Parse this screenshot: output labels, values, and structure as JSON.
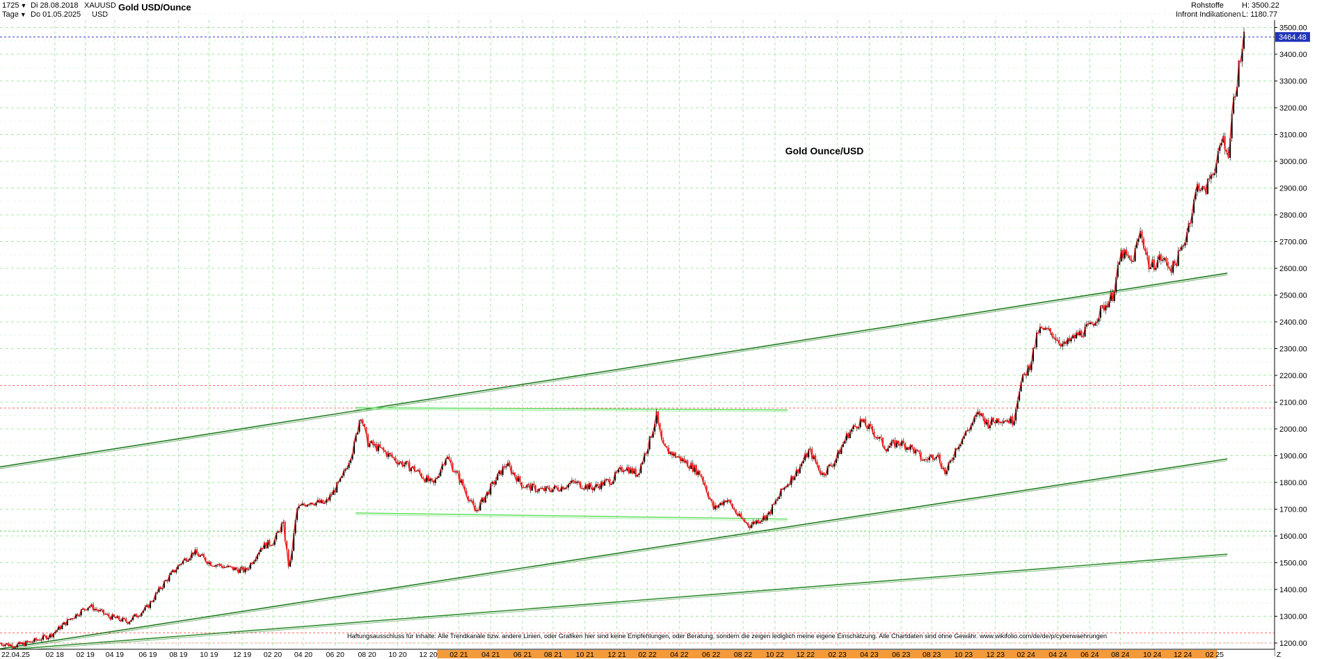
{
  "header": {
    "count": "1725",
    "period": "Tage",
    "start_date": "Di 28.08.2018",
    "end_date": "Do 01.05.2025",
    "symbol": "XAUUSD",
    "currency": "USD",
    "title": "Gold USD/Ounce",
    "category": "Rohstoffe",
    "source": "Infront Indikationen",
    "high": "H: 3500.22",
    "low": "L: 1180.77"
  },
  "chart_data": {
    "type": "candlestick",
    "title": "Gold USD/Ounce",
    "annotation": "Gold Ounce/USD",
    "disclaimer": "Haftungsausschluss für Inhalte: Alle Trendkanäle bzw. andere Linien, oder Grafiken hier sind keine Empfehlungen, oder Beratung, sondern die zeigen lediglich meine eigene Einschätzung. Alle Chartdaten sind ohne Gewähr. www.wikifolio.com/de/de/p/cyberwaehrungen",
    "ylim": [
      1180,
      3530
    ],
    "grid": true,
    "y_ticks": [
      1200,
      1300,
      1400,
      1500,
      1600,
      1700,
      1800,
      1900,
      2000,
      2100,
      2200,
      2300,
      2400,
      2500,
      2600,
      2700,
      2800,
      2900,
      3000,
      3100,
      3200,
      3300,
      3400,
      3500
    ],
    "y_tick_labels": [
      "1200.00",
      "1300.00",
      "1400.00",
      "1500.00",
      "1600.00",
      "1700.00",
      "1800.00",
      "1900.00",
      "2000.00",
      "2100.00",
      "2200.00",
      "2300.00",
      "2400.00",
      "2500.00",
      "2600.00",
      "2700.00",
      "2800.00",
      "2900.00",
      "3000.00",
      "3100.00",
      "3200.00",
      "3300.00",
      "3400.00",
      "3500.00"
    ],
    "x_tick_labels": [
      "22.04.25",
      "02 18",
      "02 19",
      "04 19",
      "06 19",
      "08 19",
      "10 19",
      "12 19",
      "02 20",
      "04 20",
      "06 20",
      "08 20",
      "10 20",
      "12 20",
      "02 21",
      "04 21",
      "06 21",
      "08 21",
      "10 21",
      "12 21",
      "02 22",
      "04 22",
      "06 22",
      "08 22",
      "10 22",
      "12 22",
      "02 23",
      "04 23",
      "06 23",
      "08 23",
      "10 23",
      "12 23",
      "02 24",
      "04 24",
      "06 24",
      "08 24",
      "10 24",
      "12 24",
      "02 25",
      "Z"
    ],
    "x_tick_pos": [
      0,
      0.043,
      0.067,
      0.09,
      0.116,
      0.14,
      0.164,
      0.19,
      0.214,
      0.238,
      0.263,
      0.288,
      0.312,
      0.336,
      0.36,
      0.385,
      0.41,
      0.434,
      0.459,
      0.484,
      0.508,
      0.533,
      0.558,
      0.583,
      0.608,
      0.632,
      0.657,
      0.682,
      0.707,
      0.731,
      0.756,
      0.781,
      0.805,
      0.83,
      0.855,
      0.879,
      0.904,
      0.928,
      0.953,
      1.005
    ],
    "last_price": "3464.48",
    "price_path": [
      [
        0.0,
        1200
      ],
      [
        0.012,
        1190
      ],
      [
        0.025,
        1205
      ],
      [
        0.04,
        1230
      ],
      [
        0.055,
        1290
      ],
      [
        0.07,
        1340
      ],
      [
        0.085,
        1300
      ],
      [
        0.1,
        1280
      ],
      [
        0.115,
        1330
      ],
      [
        0.128,
        1420
      ],
      [
        0.142,
        1500
      ],
      [
        0.152,
        1540
      ],
      [
        0.165,
        1500
      ],
      [
        0.18,
        1480
      ],
      [
        0.193,
        1470
      ],
      [
        0.205,
        1560
      ],
      [
        0.215,
        1580
      ],
      [
        0.222,
        1650
      ],
      [
        0.227,
        1470
      ],
      [
        0.233,
        1700
      ],
      [
        0.243,
        1730
      ],
      [
        0.255,
        1720
      ],
      [
        0.268,
        1810
      ],
      [
        0.278,
        1940
      ],
      [
        0.283,
        2060
      ],
      [
        0.288,
        1950
      ],
      [
        0.3,
        1920
      ],
      [
        0.312,
        1880
      ],
      [
        0.325,
        1850
      ],
      [
        0.34,
        1790
      ],
      [
        0.35,
        1900
      ],
      [
        0.362,
        1800
      ],
      [
        0.373,
        1690
      ],
      [
        0.385,
        1780
      ],
      [
        0.397,
        1870
      ],
      [
        0.41,
        1790
      ],
      [
        0.425,
        1770
      ],
      [
        0.438,
        1780
      ],
      [
        0.45,
        1800
      ],
      [
        0.465,
        1780
      ],
      [
        0.48,
        1810
      ],
      [
        0.49,
        1860
      ],
      [
        0.5,
        1830
      ],
      [
        0.51,
        1960
      ],
      [
        0.515,
        2050
      ],
      [
        0.52,
        1930
      ],
      [
        0.53,
        1900
      ],
      [
        0.54,
        1870
      ],
      [
        0.55,
        1830
      ],
      [
        0.56,
        1700
      ],
      [
        0.57,
        1740
      ],
      [
        0.58,
        1670
      ],
      [
        0.588,
        1640
      ],
      [
        0.595,
        1660
      ],
      [
        0.603,
        1680
      ],
      [
        0.615,
        1780
      ],
      [
        0.625,
        1840
      ],
      [
        0.635,
        1920
      ],
      [
        0.645,
        1830
      ],
      [
        0.655,
        1880
      ],
      [
        0.665,
        1980
      ],
      [
        0.675,
        2030
      ],
      [
        0.685,
        1990
      ],
      [
        0.695,
        1930
      ],
      [
        0.705,
        1950
      ],
      [
        0.715,
        1930
      ],
      [
        0.725,
        1880
      ],
      [
        0.735,
        1910
      ],
      [
        0.742,
        1830
      ],
      [
        0.75,
        1930
      ],
      [
        0.76,
        2000
      ],
      [
        0.768,
        2060
      ],
      [
        0.775,
        2020
      ],
      [
        0.785,
        2040
      ],
      [
        0.795,
        2030
      ],
      [
        0.8,
        2160
      ],
      [
        0.808,
        2240
      ],
      [
        0.815,
        2370
      ],
      [
        0.825,
        2360
      ],
      [
        0.835,
        2310
      ],
      [
        0.845,
        2350
      ],
      [
        0.855,
        2380
      ],
      [
        0.865,
        2450
      ],
      [
        0.873,
        2500
      ],
      [
        0.88,
        2660
      ],
      [
        0.888,
        2620
      ],
      [
        0.895,
        2740
      ],
      [
        0.902,
        2600
      ],
      [
        0.91,
        2640
      ],
      [
        0.92,
        2600
      ],
      [
        0.928,
        2680
      ],
      [
        0.935,
        2810
      ],
      [
        0.94,
        2920
      ],
      [
        0.945,
        2880
      ],
      [
        0.95,
        2950
      ],
      [
        0.955,
        3000
      ],
      [
        0.96,
        3100
      ],
      [
        0.963,
        3000
      ],
      [
        0.967,
        3200
      ],
      [
        0.972,
        3350
      ],
      [
        0.976,
        3460
      ]
    ],
    "trend_lines": [
      {
        "color": "#1e7a1e",
        "points": [
          [
            0.0,
            1858
          ],
          [
            0.963,
            2582
          ]
        ]
      },
      {
        "color": "#1e7a1e",
        "points": [
          [
            0.0,
            1178
          ],
          [
            0.963,
            1888
          ]
        ]
      },
      {
        "color": "#2e8b2e",
        "points": [
          [
            0.0,
            1173
          ],
          [
            0.963,
            1532
          ]
        ]
      },
      {
        "color": "#66e066",
        "points": [
          [
            0.279,
            2079
          ],
          [
            0.618,
            2071
          ]
        ]
      },
      {
        "color": "#66e066",
        "points": [
          [
            0.279,
            1686
          ],
          [
            0.618,
            1663
          ]
        ]
      }
    ],
    "h_lines": [
      {
        "value": 2162,
        "color": "#ff6666"
      },
      {
        "value": 2078,
        "color": "#ff6666"
      },
      {
        "value": 1618,
        "color": "#66cc66"
      },
      {
        "value": 1238,
        "color": "#ff6666"
      },
      {
        "value": 1200,
        "color": "#ff9999"
      },
      {
        "value": 3464.48,
        "color": "#3333cc"
      }
    ]
  }
}
